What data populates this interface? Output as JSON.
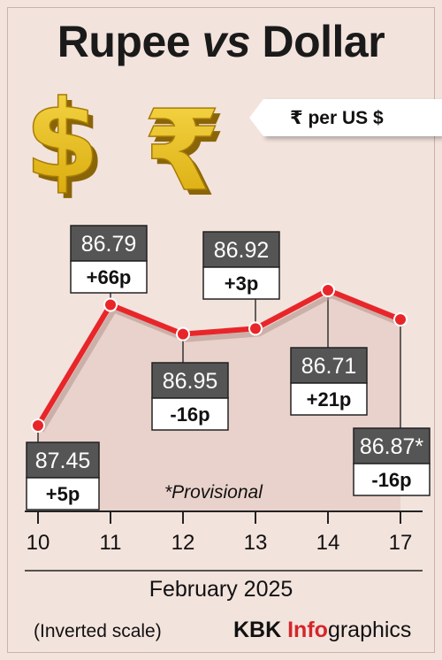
{
  "header": {
    "title_part1": "Rupee ",
    "title_vs": "vs",
    "title_part2": " Dollar",
    "unit": "₹ per US $"
  },
  "chart_data": {
    "type": "line",
    "title": "Rupee vs Dollar",
    "ylabel": "₹ per US $",
    "xlabel": "February 2025",
    "inverted_y": true,
    "x": [
      "10",
      "11",
      "12",
      "13",
      "14",
      "17"
    ],
    "series": [
      {
        "values": [
          87.45,
          86.79,
          86.95,
          86.92,
          86.71,
          86.87
        ],
        "value_labels": [
          "87.45",
          "86.79",
          "86.95",
          "86.92",
          "86.71",
          "86.87*"
        ],
        "changes": [
          "+5p",
          "+66p",
          "-16p",
          "+3p",
          "+21p",
          "-16p"
        ],
        "color": "#e8262a"
      }
    ],
    "annotation": "*Provisional",
    "scale_note": "(Inverted scale)"
  },
  "footer": {
    "credit_kbk": "KBK ",
    "credit_info": "Info",
    "credit_graphics": "graphics"
  },
  "colors": {
    "background": "#f3e3dd",
    "line": "#e8262a",
    "value_box": "#555555",
    "coin_gold": "#e2b80f"
  }
}
